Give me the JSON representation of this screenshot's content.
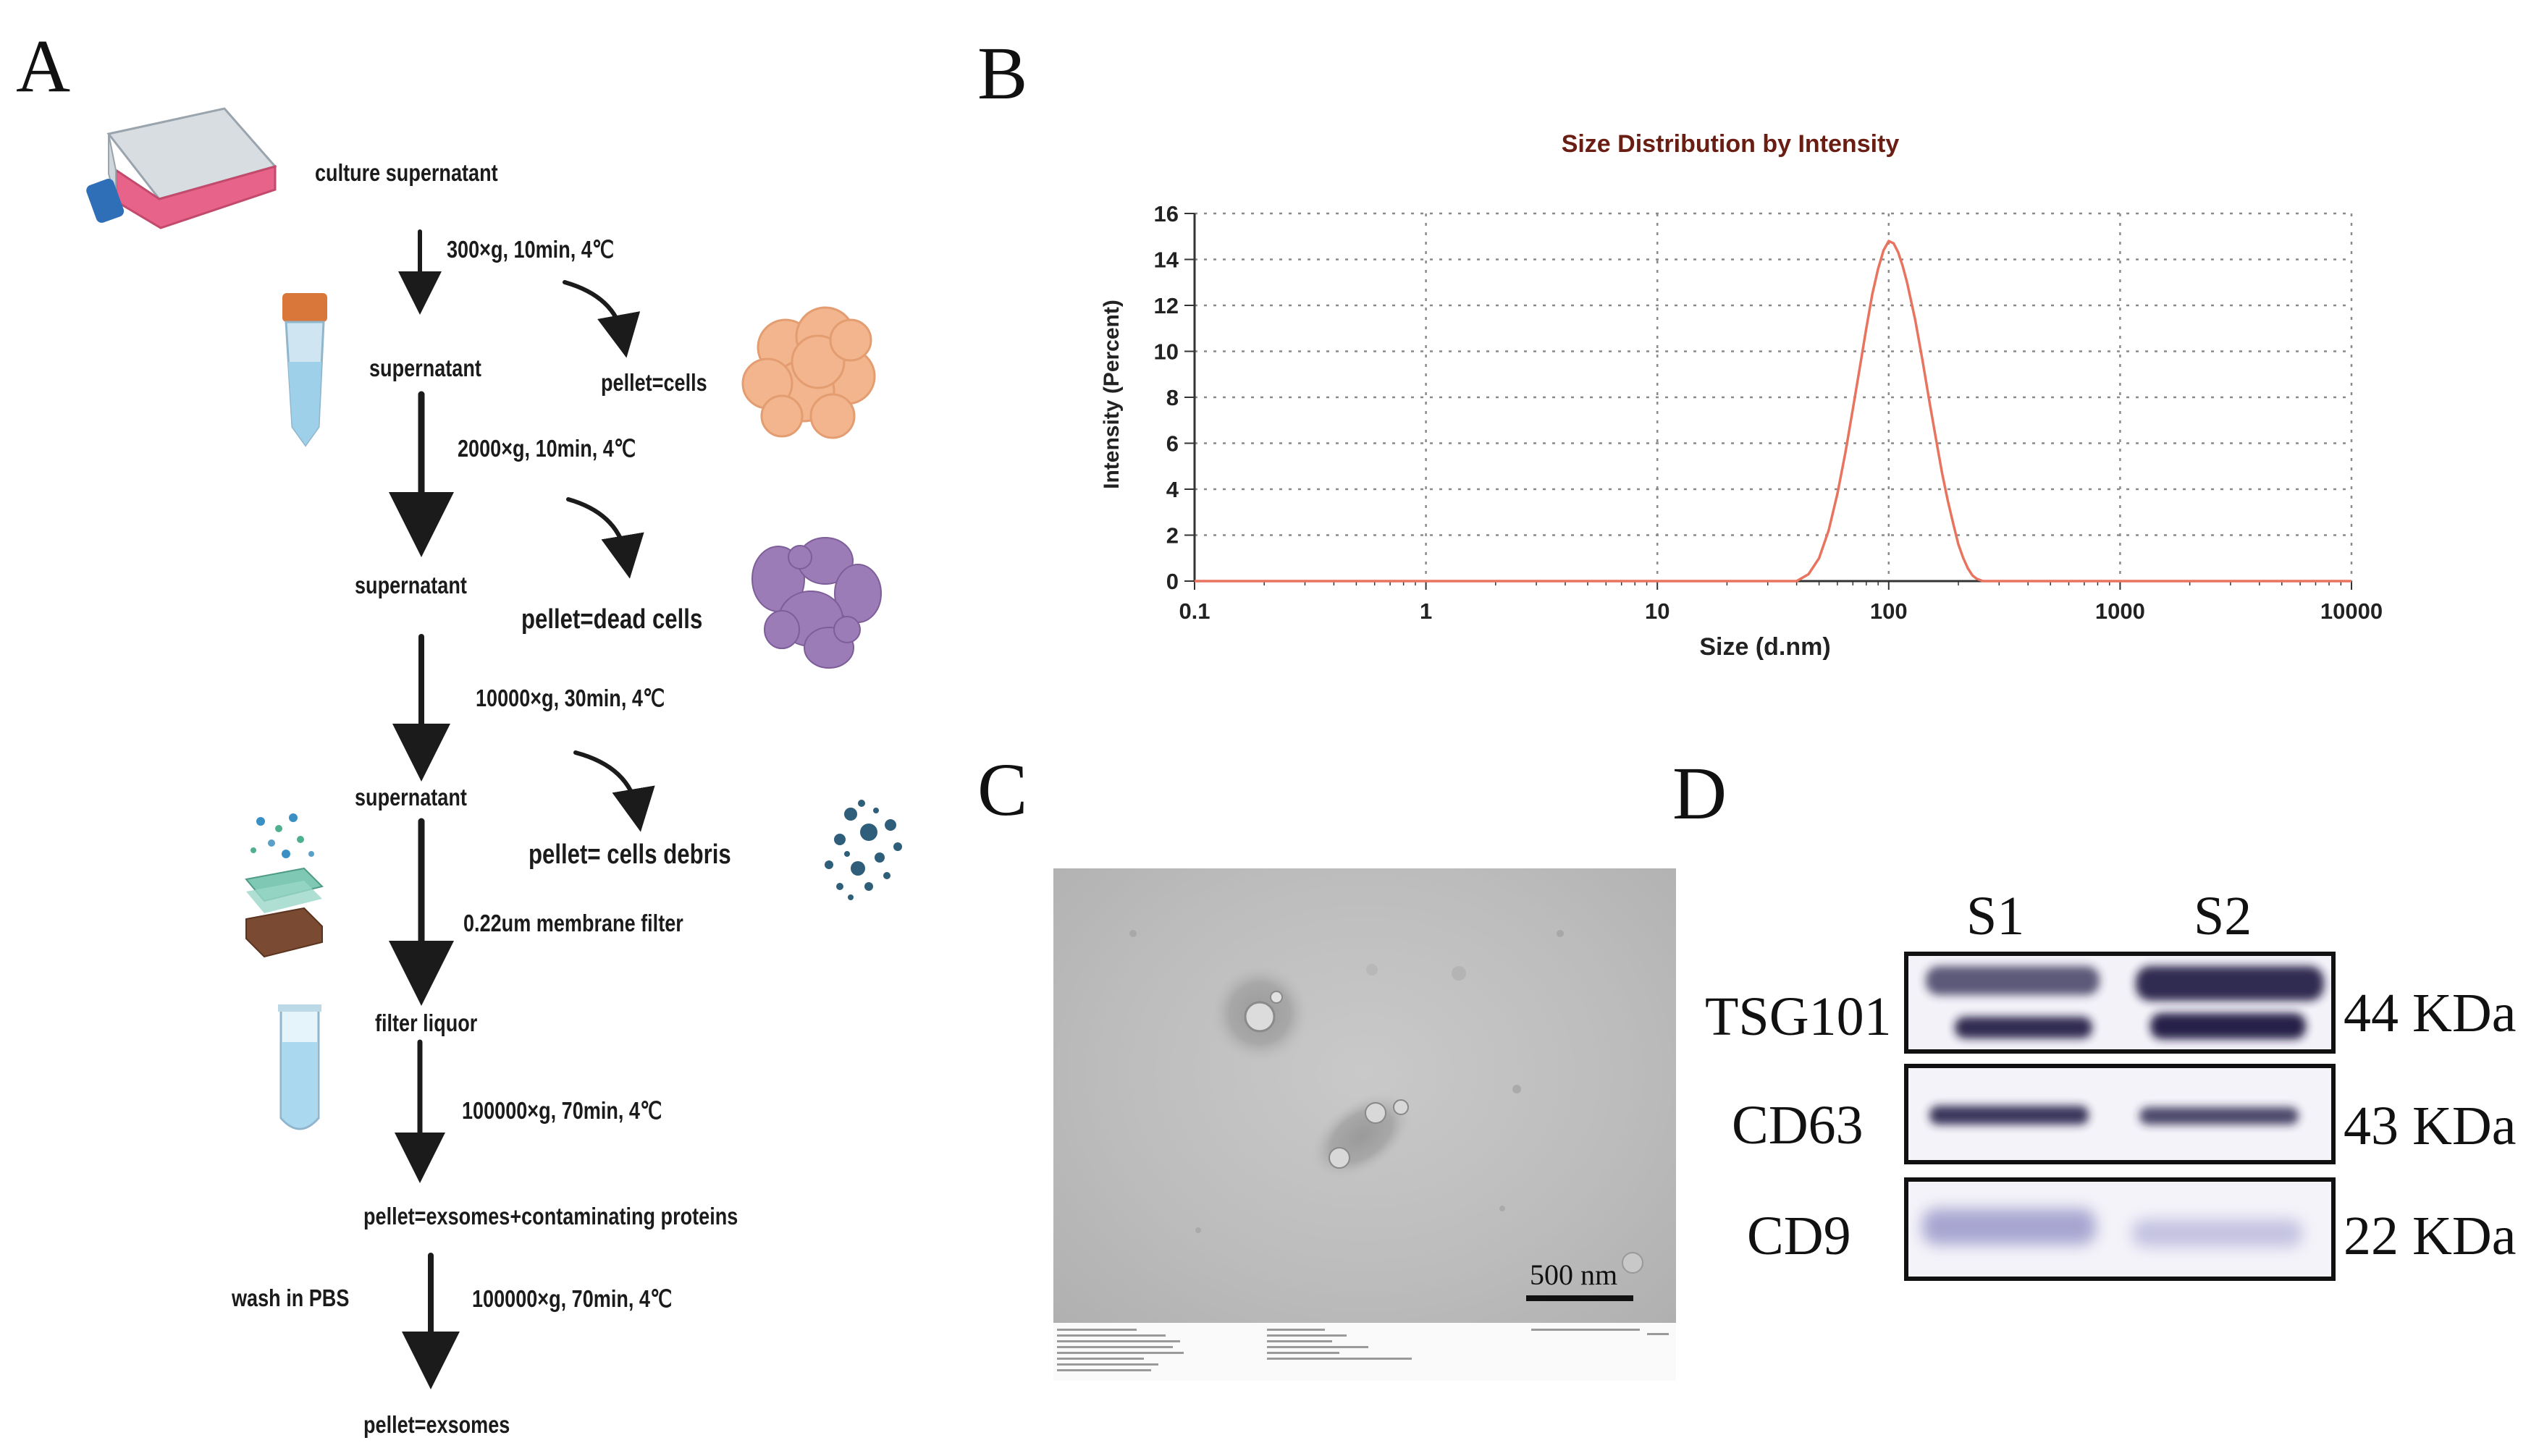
{
  "panels": {
    "a": "A",
    "b": "B",
    "c": "C",
    "d": "D"
  },
  "flowchart": {
    "steps": [
      {
        "label": "culture supernatant"
      },
      {
        "label": "300×g, 10min, 4℃"
      },
      {
        "label": "supernatant"
      },
      {
        "label": "pellet=cells"
      },
      {
        "label": "2000×g, 10min, 4℃"
      },
      {
        "label": "supernatant"
      },
      {
        "label": "pellet=dead cells"
      },
      {
        "label": "10000×g, 30min, 4℃"
      },
      {
        "label": "supernatant"
      },
      {
        "label": "pellet= cells debris"
      },
      {
        "label": "0.22um membrane filter"
      },
      {
        "label": "filter liquor"
      },
      {
        "label": "100000×g, 70min, 4℃"
      },
      {
        "label": "pellet=exsomes+contaminating proteins"
      },
      {
        "label": "wash in PBS"
      },
      {
        "label": "100000×g, 70min, 4℃"
      },
      {
        "label": "pellet=exsomes"
      }
    ]
  },
  "chart_data": {
    "type": "line",
    "title": "Size Distribution by Intensity",
    "xlabel": "Size (d.nm)",
    "ylabel": "Intensity (Percent)",
    "xscale": "log",
    "xlim": [
      0.1,
      10000
    ],
    "ylim": [
      0,
      16
    ],
    "xticks": [
      "0.1",
      "1",
      "10",
      "100",
      "1000",
      "10000"
    ],
    "yticks": [
      "0",
      "2",
      "4",
      "6",
      "8",
      "10",
      "12",
      "14",
      "16"
    ],
    "grid": true,
    "series": [
      {
        "color": "#e8735f",
        "x": [
          0.1,
          40,
          45,
          50,
          55,
          60,
          65,
          70,
          75,
          80,
          85,
          90,
          95,
          100,
          105,
          110,
          115,
          120,
          130,
          140,
          150,
          160,
          170,
          180,
          190,
          200,
          210,
          220,
          230,
          240,
          255,
          10000
        ],
        "y": [
          0,
          0,
          0.3,
          1.0,
          2.2,
          3.8,
          5.6,
          7.5,
          9.3,
          11.0,
          12.5,
          13.6,
          14.4,
          14.8,
          14.7,
          14.3,
          13.7,
          13.0,
          11.4,
          9.6,
          7.8,
          6.2,
          4.7,
          3.5,
          2.5,
          1.6,
          1.0,
          0.55,
          0.25,
          0.1,
          0,
          0
        ]
      }
    ]
  },
  "tem": {
    "scale_label": "500 nm"
  },
  "western_blot": {
    "lanes": [
      "S1",
      "S2"
    ],
    "rows": [
      {
        "protein": "TSG101",
        "size": "44 KDa"
      },
      {
        "protein": "CD63",
        "size": "43 KDa"
      },
      {
        "protein": "CD9",
        "size": "22 KDa"
      }
    ]
  },
  "colors": {
    "curve": "#e8735f",
    "grid": "#8a8a8a",
    "band": "#2c2650",
    "title": "#6a1d12",
    "flask_pink": "#e8638a",
    "cells": "#f2b58d",
    "dead_cells": "#9b7cb6",
    "debris": "#2f5e7a"
  }
}
